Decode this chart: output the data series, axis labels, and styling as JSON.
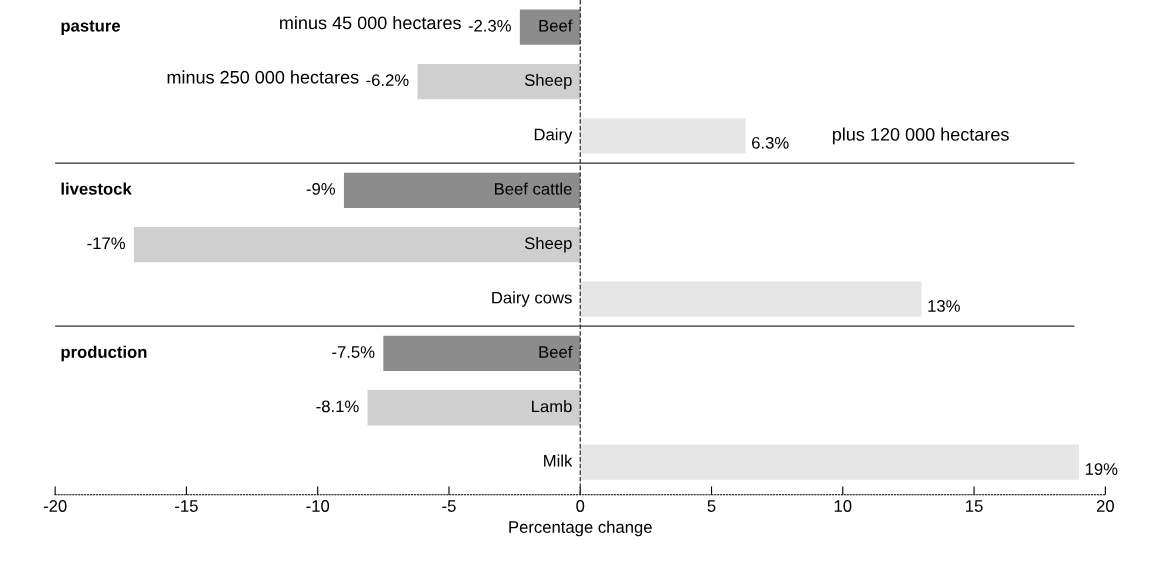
{
  "chart_data": {
    "type": "bar",
    "orientation": "horizontal",
    "categories": [
      "Beef",
      "Sheep",
      "Dairy",
      "Beef cattle",
      "Sheep",
      "Dairy cows",
      "Beef",
      "Lamb",
      "Milk"
    ],
    "values": [
      -2.3,
      -6.2,
      6.3,
      -9,
      -17,
      13,
      -7.5,
      -8.1,
      19
    ],
    "colors": [
      "#8c8c8c",
      "#cfcfcf",
      "#e6e6e6",
      "#8c8c8c",
      "#cfcfcf",
      "#e6e6e6",
      "#8c8c8c",
      "#cfcfcf",
      "#e6e6e6"
    ],
    "value_labels": [
      "-2.3%",
      "-6.2%",
      "6.3%",
      "-9%",
      "-17%",
      "13%",
      "-7.5%",
      "-8.1%",
      "19%"
    ],
    "xlim": [
      -20,
      20
    ],
    "xticks": [
      -20,
      -15,
      -10,
      -5,
      0,
      5,
      10,
      15,
      20
    ],
    "xlabel": "Percentage change",
    "tick_labels": "x",
    "grid": false,
    "legend": false,
    "ref_lines": [
      {
        "axis": "x",
        "value": 0,
        "line_style": "dashed",
        "color": "#333333"
      }
    ],
    "annotations": [
      "pasture",
      "livestock",
      "production",
      "minus 45 000 hectares",
      "minus 250 000 hectares",
      "plus 120 000 hectares"
    ]
  }
}
